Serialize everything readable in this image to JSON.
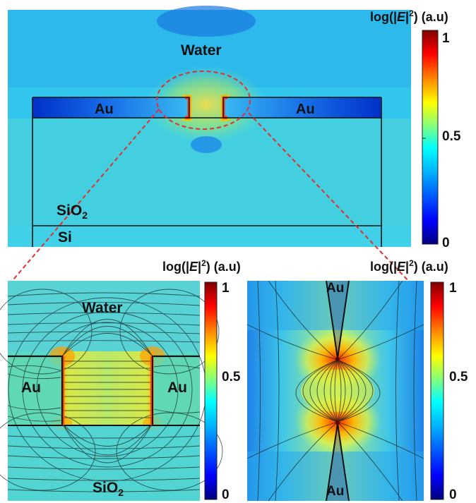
{
  "colorbar": {
    "title_prefix": "log(|",
    "title_var": "E",
    "title_suffix": "|",
    "title_exp": "2",
    "title_tail": ") (a.u)",
    "tick_max": "1",
    "tick_mid": "0.5",
    "tick_min": "0",
    "colors": [
      "#00007f",
      "#0000ff",
      "#007fff",
      "#00ffff",
      "#7fff7f",
      "#ffff00",
      "#ff7f00",
      "#ff0000",
      "#7f0000"
    ]
  },
  "top_panel": {
    "water_label": "Water",
    "au_left_label": "Au",
    "au_right_label": "Au",
    "sio2_label": "SiO",
    "sio2_sub": "2",
    "si_label": "Si"
  },
  "bottom_left_panel": {
    "water_label": "Water",
    "au_left_label": "Au",
    "au_right_label": "Au",
    "sio2_label": "SiO",
    "sio2_sub": "2"
  },
  "bottom_right_panel": {
    "au_top_label": "Au",
    "au_bottom_label": "Au"
  },
  "highlight_color": "#e03030"
}
